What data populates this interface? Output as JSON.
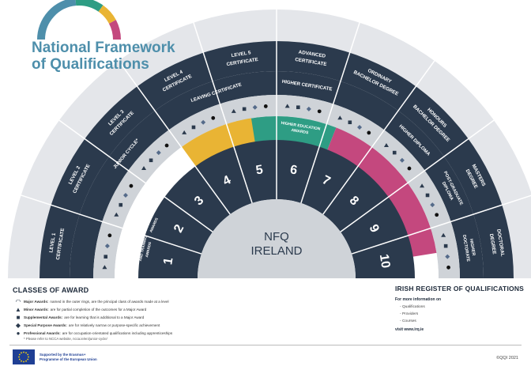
{
  "title": {
    "line1": "National Framework",
    "line2": "of Qualifications"
  },
  "center": {
    "line1": "NFQ",
    "line2": "IRELAND"
  },
  "levels": [
    "1",
    "2",
    "3",
    "4",
    "5",
    "6",
    "7",
    "8",
    "9",
    "10"
  ],
  "outer_labels": [
    [
      "LEVEL 1",
      "CERTIFICATE"
    ],
    [
      "LEVEL 2",
      "CERTIFICATE"
    ],
    [
      "LEVEL 3",
      "CERTIFICATE"
    ],
    [
      "LEVEL 4",
      "CERTIFICATE"
    ],
    [
      "LEVEL 5",
      "CERTIFICATE"
    ],
    [
      "ADVANCED",
      "CERTIFICATE"
    ],
    [
      "ORDINARY",
      "BACHELOR DEGREE"
    ],
    [
      "HONOURS",
      "BACHELOR DEGREE"
    ],
    [
      "MASTERS",
      "DEGREE"
    ],
    [
      "DOCTORAL",
      "DEGREE"
    ]
  ],
  "inner_labels": {
    "junior_cycle": "JUNIOR CYCLE*",
    "leaving_certificate": "LEAVING CERTIFICATE",
    "higher_certificate": "HIGHER CERTIFICATE",
    "higher_diploma": "HIGHER DIPLOMA",
    "post_graduate_diploma": [
      "POST-GRADUATE",
      "DIPLOMA"
    ],
    "higher_doctorate": [
      "HIGHER",
      "DOCTORATE"
    ]
  },
  "sectors": {
    "further_education": [
      "FURTHER EDUCATION",
      "AND TRAINING",
      "AWARDS"
    ],
    "general_education": [
      "GENERAL",
      "EDUCATION",
      "AWARDS"
    ],
    "higher_education": [
      "HIGHER EDUCATION",
      "AWARDS"
    ]
  },
  "colors": {
    "navy": "#2b3a4d",
    "teal": "#2e9d84",
    "yellow": "#e9b434",
    "magenta": "#c4487e",
    "grey_ring": "#cfd3d8",
    "light": "#e4e6ea",
    "title_blue": "#4e8fab"
  },
  "legend": {
    "heading": "CLASSES OF AWARD",
    "items": [
      {
        "icon": "arc-icon",
        "name": "Major Awards:",
        "text": "named in the outer rings, are the principal class of awards made at a level"
      },
      {
        "icon": "triangle-icon",
        "name": "Minor Awards:",
        "text": "are for partial completion of the outcomes for a Major Award"
      },
      {
        "icon": "square-icon",
        "name": "Supplemental Awards:",
        "text": "are for learning that is additional to a Major Award"
      },
      {
        "icon": "diamond-icon",
        "name": "Special Purpose Awards:",
        "text": "are for relatively narrow or purpose-specific achievement"
      },
      {
        "icon": "circle-icon",
        "name": "Professional Awards:",
        "text": "are for occupation-orientated qualifications including apprenticeships"
      }
    ],
    "note": "* Please refer to NCCA website, ncca.ie/en/junior-cycle/"
  },
  "register": {
    "heading": "IRISH REGISTER OF QUALIFICATIONS",
    "more": "For more information on",
    "items": [
      "Qualifications",
      "Providers",
      "Courses"
    ],
    "visit": "visit www.irq.ie"
  },
  "footer": {
    "eu_line1": "Supported by the Erasmus+",
    "eu_line2": "Programme of the European Union",
    "copyright": "©QQI 2021"
  }
}
